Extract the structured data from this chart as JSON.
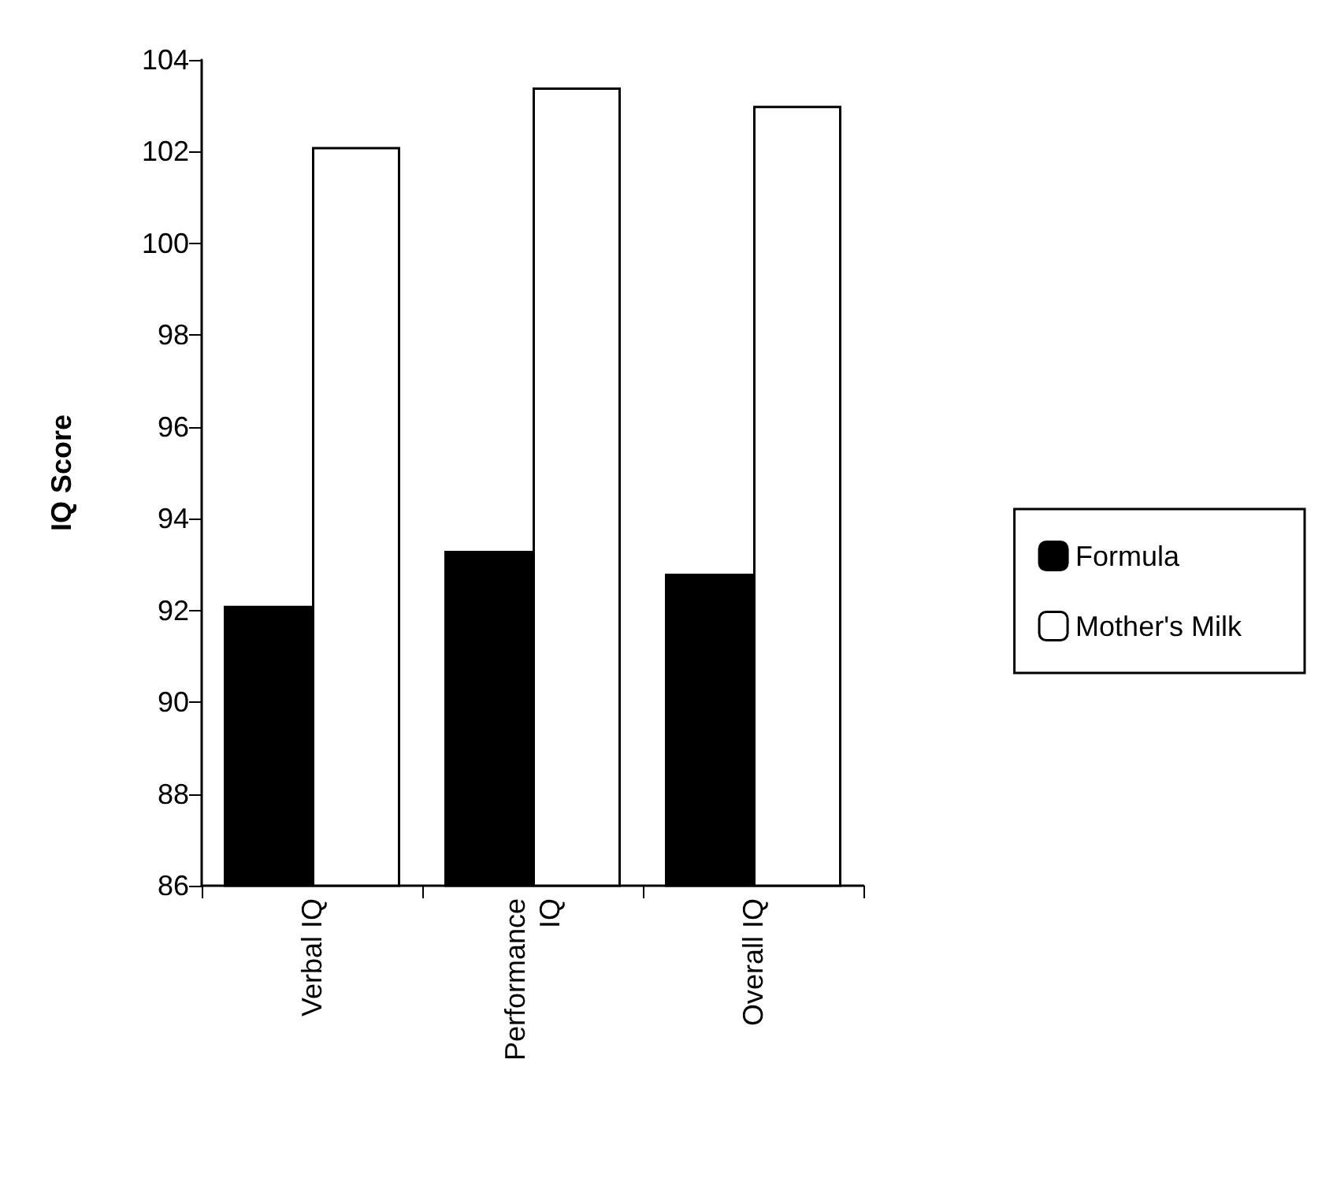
{
  "chart_data": {
    "type": "bar",
    "ylabel": "IQ Score",
    "categories": [
      "Verbal IQ",
      "Performance\nIQ",
      "Overall IQ"
    ],
    "series": [
      {
        "name": "Formula",
        "color": "#000000",
        "values": [
          92.1,
          93.3,
          92.8
        ]
      },
      {
        "name": "Mother's Milk",
        "color": "#ffffff",
        "values": [
          102.1,
          103.4,
          103.0
        ]
      }
    ],
    "ylim": [
      86,
      104
    ],
    "yticks": [
      86,
      88,
      90,
      92,
      94,
      96,
      98,
      100,
      102,
      104
    ],
    "grid": false,
    "legend": "right"
  }
}
